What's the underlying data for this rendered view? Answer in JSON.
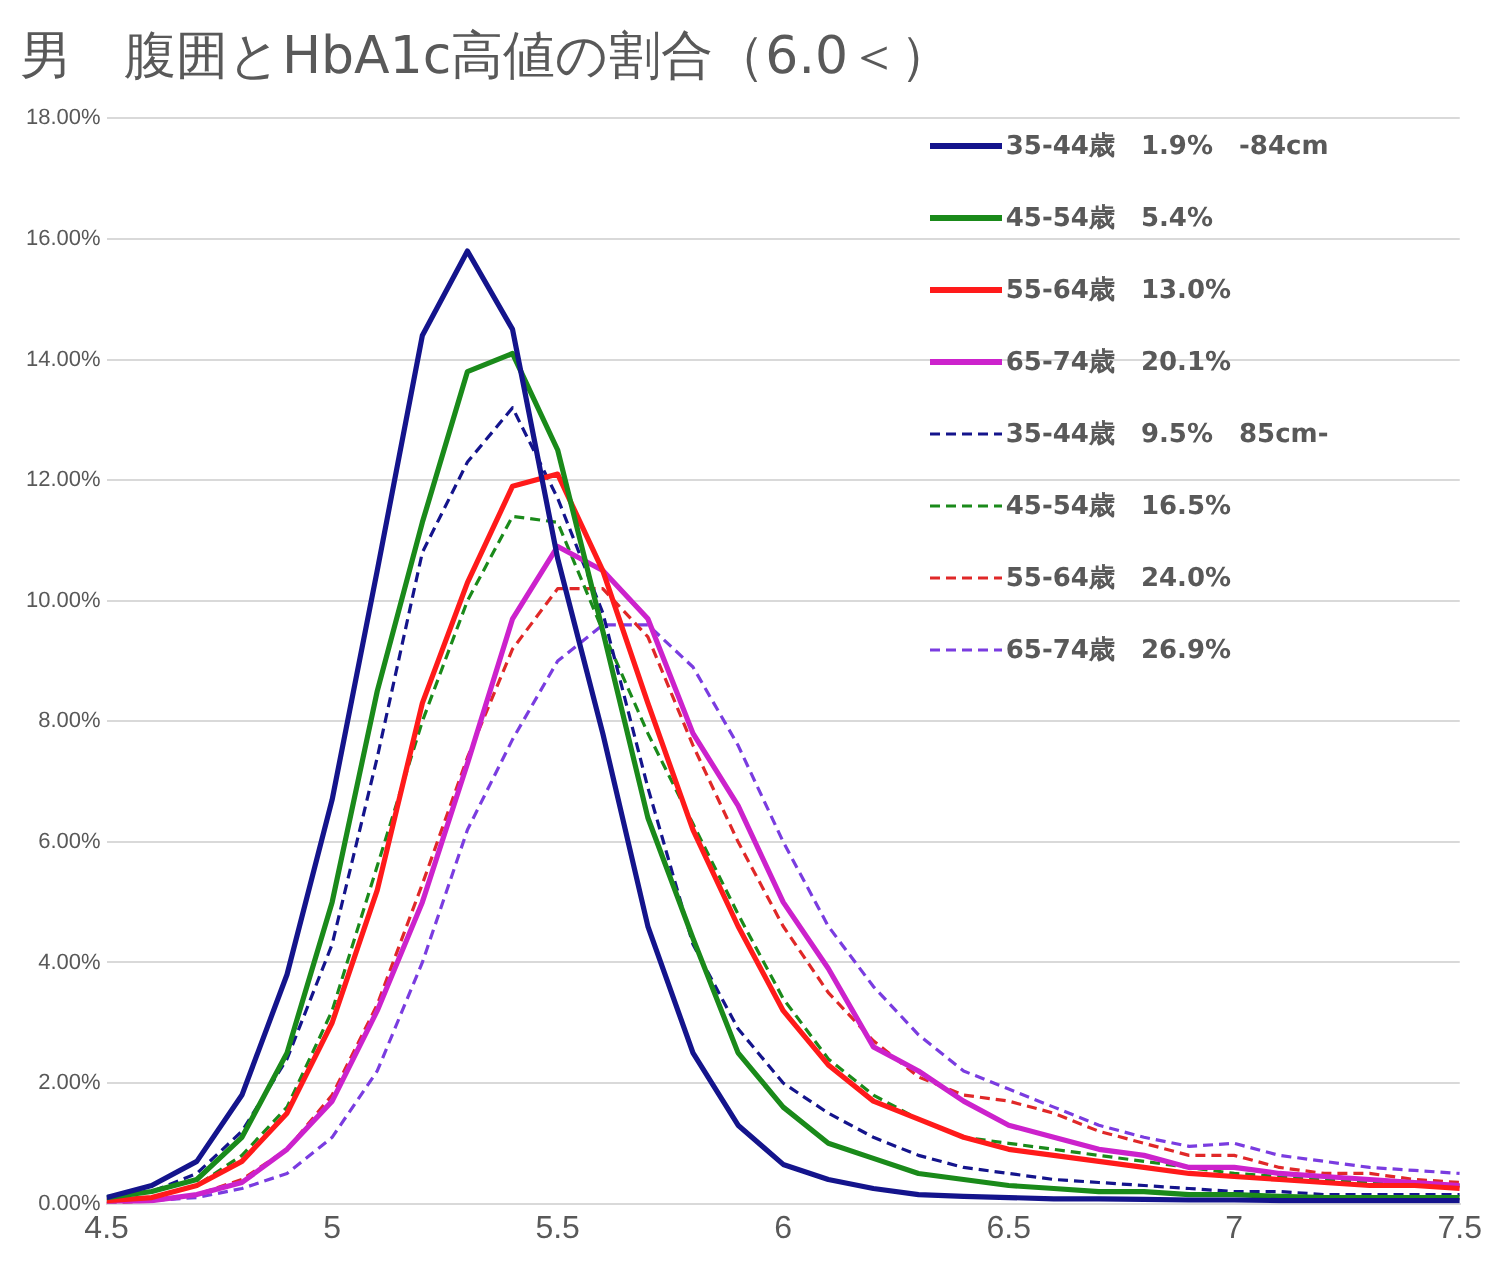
{
  "chart_data": {
    "type": "line",
    "title": "男　腹囲とHbA1c高値の割合（6.0＜）",
    "x": [
      4.5,
      4.6,
      4.7,
      4.8,
      4.9,
      5.0,
      5.1,
      5.2,
      5.3,
      5.4,
      5.5,
      5.6,
      5.7,
      5.8,
      5.9,
      6.0,
      6.1,
      6.2,
      6.3,
      6.4,
      6.5,
      6.6,
      6.7,
      6.8,
      6.9,
      7.0,
      7.1,
      7.2,
      7.3,
      7.4,
      7.5
    ],
    "xlim": [
      4.5,
      7.5
    ],
    "xticks": [
      4.5,
      5,
      5.5,
      6,
      6.5,
      7,
      7.5
    ],
    "ylim": [
      0,
      18
    ],
    "yticks": [
      {
        "value": 0,
        "label": "0.00%"
      },
      {
        "value": 2,
        "label": "2.00%"
      },
      {
        "value": 4,
        "label": "4.00%"
      },
      {
        "value": 6,
        "label": "6.00%"
      },
      {
        "value": 8,
        "label": "8.00%"
      },
      {
        "value": 10,
        "label": "10.00%"
      },
      {
        "value": 12,
        "label": "12.00%"
      },
      {
        "value": 14,
        "label": "14.00%"
      },
      {
        "value": 16,
        "label": "16.00%"
      },
      {
        "value": 18,
        "label": "18.00%"
      }
    ],
    "grid": "y",
    "legend": "top right",
    "marker": "none",
    "series": [
      {
        "name": "35-44歳　1.9%　-84cm",
        "color": "#14148c",
        "line_style": "solid",
        "values": [
          0.1,
          0.3,
          0.7,
          1.8,
          3.8,
          6.7,
          10.5,
          14.4,
          15.8,
          14.5,
          10.7,
          7.8,
          4.6,
          2.5,
          1.3,
          0.65,
          0.4,
          0.25,
          0.15,
          0.12,
          0.1,
          0.08,
          0.08,
          0.07,
          0.06,
          0.06,
          0.05,
          0.05,
          0.05,
          0.05,
          0.05
        ]
      },
      {
        "name": "45-54歳　5.4%",
        "color": "#1a8a1a",
        "line_style": "solid",
        "values": [
          0.1,
          0.2,
          0.4,
          1.1,
          2.5,
          5.0,
          8.5,
          11.3,
          13.8,
          14.1,
          12.5,
          9.5,
          6.4,
          4.4,
          2.5,
          1.6,
          1.0,
          0.75,
          0.5,
          0.4,
          0.3,
          0.25,
          0.2,
          0.2,
          0.15,
          0.15,
          0.12,
          0.1,
          0.1,
          0.1,
          0.1
        ]
      },
      {
        "name": "55-64歳　13.0%",
        "color": "#ff1a1a",
        "line_style": "solid",
        "values": [
          0.05,
          0.1,
          0.3,
          0.7,
          1.5,
          3.0,
          5.2,
          8.3,
          10.3,
          11.9,
          12.1,
          10.5,
          8.3,
          6.2,
          4.6,
          3.2,
          2.3,
          1.7,
          1.4,
          1.1,
          0.9,
          0.8,
          0.7,
          0.6,
          0.5,
          0.45,
          0.4,
          0.35,
          0.3,
          0.3,
          0.25
        ]
      },
      {
        "name": "65-74歳　20.1%",
        "color": "#cc22cc",
        "line_style": "solid",
        "values": [
          0.0,
          0.05,
          0.15,
          0.35,
          0.9,
          1.7,
          3.2,
          5.0,
          7.3,
          9.7,
          10.9,
          10.5,
          9.7,
          7.8,
          6.6,
          5.0,
          3.9,
          2.6,
          2.2,
          1.7,
          1.3,
          1.1,
          0.9,
          0.8,
          0.6,
          0.6,
          0.5,
          0.45,
          0.4,
          0.35,
          0.3
        ]
      },
      {
        "name": "35-44歳　9.5%　85cm-",
        "color": "#14148c",
        "line_style": "dashed",
        "values": [
          0.1,
          0.2,
          0.5,
          1.2,
          2.4,
          4.3,
          7.4,
          10.8,
          12.3,
          13.2,
          11.7,
          9.8,
          6.9,
          4.3,
          2.9,
          2.0,
          1.5,
          1.1,
          0.8,
          0.6,
          0.5,
          0.4,
          0.35,
          0.3,
          0.25,
          0.2,
          0.2,
          0.15,
          0.15,
          0.15,
          0.15
        ]
      },
      {
        "name": "45-54歳　16.5%",
        "color": "#1a8a1a",
        "line_style": "dashed",
        "values": [
          0.05,
          0.1,
          0.3,
          0.8,
          1.6,
          3.2,
          5.6,
          8.0,
          10.0,
          11.4,
          11.3,
          9.5,
          7.8,
          6.3,
          4.8,
          3.4,
          2.4,
          1.8,
          1.4,
          1.1,
          1.0,
          0.9,
          0.8,
          0.7,
          0.6,
          0.5,
          0.45,
          0.4,
          0.35,
          0.3,
          0.3
        ]
      },
      {
        "name": "55-64歳　24.0%",
        "color": "#e02828",
        "line_style": "dashed",
        "values": [
          0.0,
          0.05,
          0.15,
          0.4,
          0.9,
          1.8,
          3.3,
          5.3,
          7.4,
          9.2,
          10.2,
          10.2,
          9.4,
          7.6,
          6.0,
          4.6,
          3.5,
          2.7,
          2.1,
          1.8,
          1.7,
          1.5,
          1.2,
          1.0,
          0.8,
          0.8,
          0.6,
          0.5,
          0.5,
          0.4,
          0.35
        ]
      },
      {
        "name": "65-74歳　26.9%",
        "color": "#7a3ce0",
        "line_style": "dashed",
        "values": [
          0.0,
          0.05,
          0.1,
          0.25,
          0.5,
          1.1,
          2.2,
          4.0,
          6.2,
          7.7,
          9.0,
          9.6,
          9.6,
          8.9,
          7.6,
          6.0,
          4.6,
          3.6,
          2.8,
          2.2,
          1.9,
          1.6,
          1.3,
          1.1,
          0.95,
          1.0,
          0.8,
          0.7,
          0.6,
          0.55,
          0.5
        ]
      }
    ]
  }
}
